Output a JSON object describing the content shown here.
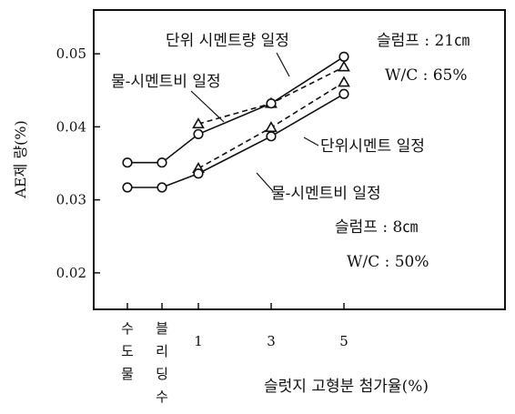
{
  "chart_data": {
    "type": "line",
    "ylabel": "AE제 량(%)",
    "xlabel": "슬럿지 고형분 첨가율(%)",
    "x_tick_labels": [
      "수도물",
      "블리딩수",
      "1",
      "3",
      "5"
    ],
    "y_tick_labels": [
      "0.02",
      "0.03",
      "0.04",
      "0.05"
    ],
    "ylim": [
      0.015,
      0.056
    ],
    "grid": false,
    "series": [
      {
        "label": "단위 시멘트량 일정",
        "group": "슬럼프 21cm, W/C 65%",
        "marker": "triangle",
        "line": "dashed",
        "x": [
          "수도물",
          "블리딩수",
          "1",
          "3",
          "5"
        ],
        "y": [
          null,
          null,
          0.0404,
          0.0432,
          0.0482
        ]
      },
      {
        "label": "물-시멘트비 일정",
        "group": "슬럼프 21cm, W/C 65%",
        "marker": "circle",
        "line": "solid",
        "x": [
          "수도물",
          "블리딩수",
          "1",
          "3",
          "5"
        ],
        "y": [
          0.0351,
          0.0351,
          0.039,
          0.0432,
          0.0496
        ]
      },
      {
        "label": "단위시멘트 일정",
        "group": "슬럼프 8cm, W/C 50%",
        "marker": "triangle",
        "line": "dashed",
        "x": [
          "수도물",
          "블리딩수",
          "1",
          "3",
          "5"
        ],
        "y": [
          null,
          null,
          0.0343,
          0.0399,
          0.0461
        ]
      },
      {
        "label": "물-시멘트비 일정",
        "group": "슬럼프 8cm, W/C 50%",
        "marker": "circle",
        "line": "solid",
        "x": [
          "수도물",
          "블리딩수",
          "1",
          "3",
          "5"
        ],
        "y": [
          0.0317,
          0.0317,
          0.0336,
          0.0387,
          0.0445
        ]
      }
    ],
    "annotations": [
      "단위 시멘트량 일정",
      "물-시멘트비 일정",
      "단위시멘트 일정",
      "물-시멘트비 일정",
      "슬럼프 : 21㎝",
      "W/C : 65%",
      "슬럼프 : 8㎝",
      "W/C : 50%"
    ]
  }
}
